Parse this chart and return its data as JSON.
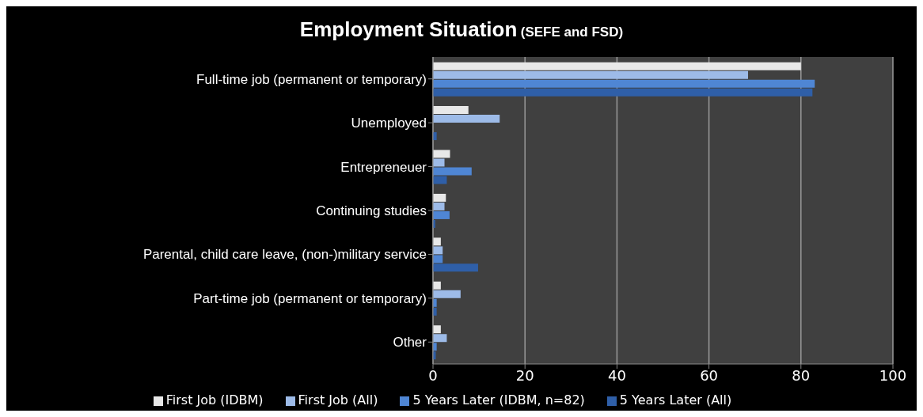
{
  "chart_data": {
    "type": "bar",
    "orientation": "horizontal",
    "title": "Employment Situation",
    "subtitle": "(SEFE and FSD)",
    "categories": [
      "Full-time job (permanent or temporary)",
      "Unemployed",
      "Entrepreneuer",
      "Continuing studies",
      "Parental, child care leave, (non-)military service",
      "Part-time job (permanent or temporary)",
      "Other"
    ],
    "series": [
      {
        "name": "First Job (IDBM)",
        "color": "#e8e8e8",
        "values": [
          80,
          7.7,
          3.7,
          2.8,
          1.7,
          1.7,
          1.7
        ]
      },
      {
        "name": "First Job (All)",
        "color": "#9dbbe8",
        "values": [
          68.5,
          14.5,
          2.5,
          2.5,
          2.1,
          6,
          3
        ]
      },
      {
        "name": "5 Years Later (IDBM, n=82)",
        "color": "#4f86d4",
        "values": [
          83,
          0,
          8.4,
          3.6,
          2.1,
          0.8,
          0.8
        ]
      },
      {
        "name": "5 Years Later (All)",
        "color": "#2f5fa8",
        "values": [
          82.5,
          0.8,
          3,
          0.5,
          9.8,
          0.8,
          0.6
        ]
      }
    ],
    "xlim": [
      0,
      100
    ],
    "xticks": [
      0,
      20,
      40,
      60,
      80,
      100
    ],
    "grid": "x",
    "legend": "bottom"
  }
}
